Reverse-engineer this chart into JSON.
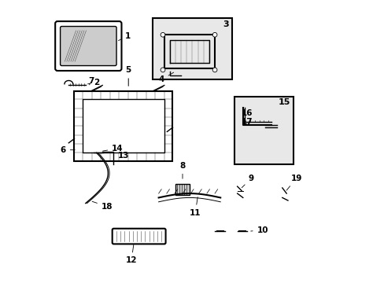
{
  "bg_color": "#ffffff",
  "line_color": "#000000",
  "part_color": "#888888",
  "shaded_color": "#cccccc",
  "box_bg": "#e8e8e8",
  "title": ""
}
